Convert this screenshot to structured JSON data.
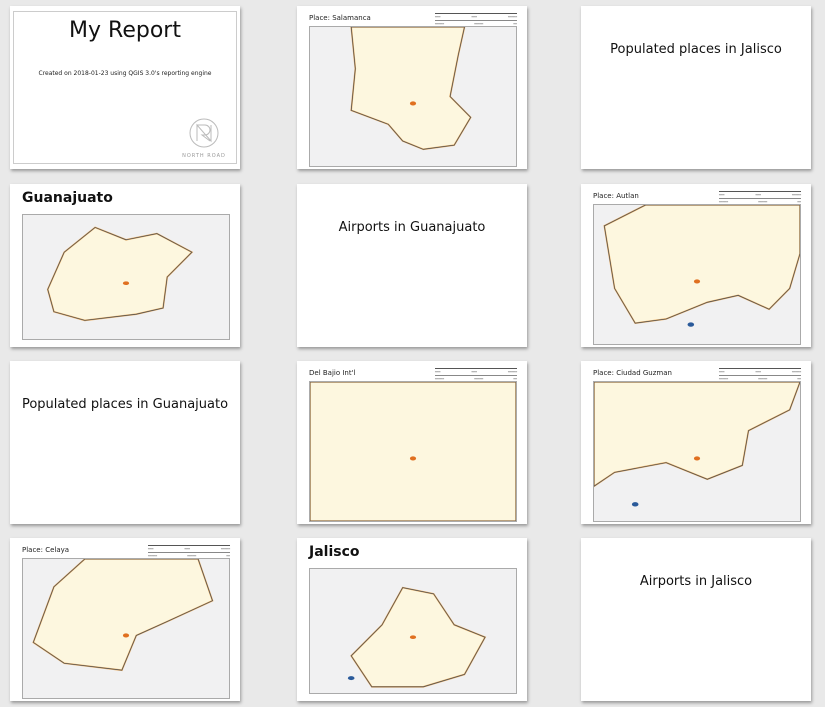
{
  "cover": {
    "title": "My Report",
    "subtitle": "Created on 2018-01-23 using QGIS 3.0's reporting engine",
    "logo_text": "NORTH ROAD"
  },
  "pages": [
    {
      "kind": "cover",
      "pos": "c0 r0"
    },
    {
      "kind": "place",
      "pos": "c1 r0",
      "title": "Place: Salamanca",
      "map": "salamanca",
      "fill": "#fdf7df",
      "point": "#e07020"
    },
    {
      "kind": "heading",
      "pos": "c2 r0",
      "title": "Populated places in Jalisco"
    },
    {
      "kind": "section",
      "pos": "c0 r1",
      "title": "Guanajuato",
      "map": "guanajuato"
    },
    {
      "kind": "heading",
      "pos": "c1 r1",
      "title": "Airports in Guanajuato"
    },
    {
      "kind": "place",
      "pos": "c2 r1",
      "title": "Place: Autlan",
      "map": "autlan"
    },
    {
      "kind": "heading",
      "pos": "c0 r2",
      "title": "Populated places in Guanajuato"
    },
    {
      "kind": "place",
      "pos": "c1 r2",
      "title": "Del Bajio Int'l",
      "map": "bajio"
    },
    {
      "kind": "place",
      "pos": "c2 r2",
      "title": "Place: Ciudad Guzman",
      "map": "guzman"
    },
    {
      "kind": "place",
      "pos": "c0 r3",
      "title": "Place: Celaya",
      "map": "celaya"
    },
    {
      "kind": "section",
      "pos": "c1 r3",
      "title": "Jalisco",
      "map": "jalisco"
    },
    {
      "kind": "heading",
      "pos": "c2 r3",
      "title": "Airports in Jalisco"
    }
  ],
  "colors": {
    "region_fill": "#fdf7df",
    "outside_fill": "#f1f1f2",
    "border": "#555555",
    "highlight_border": "#f0b060",
    "place_marker": "#e07020",
    "airport_marker": "#2a5a9a"
  }
}
